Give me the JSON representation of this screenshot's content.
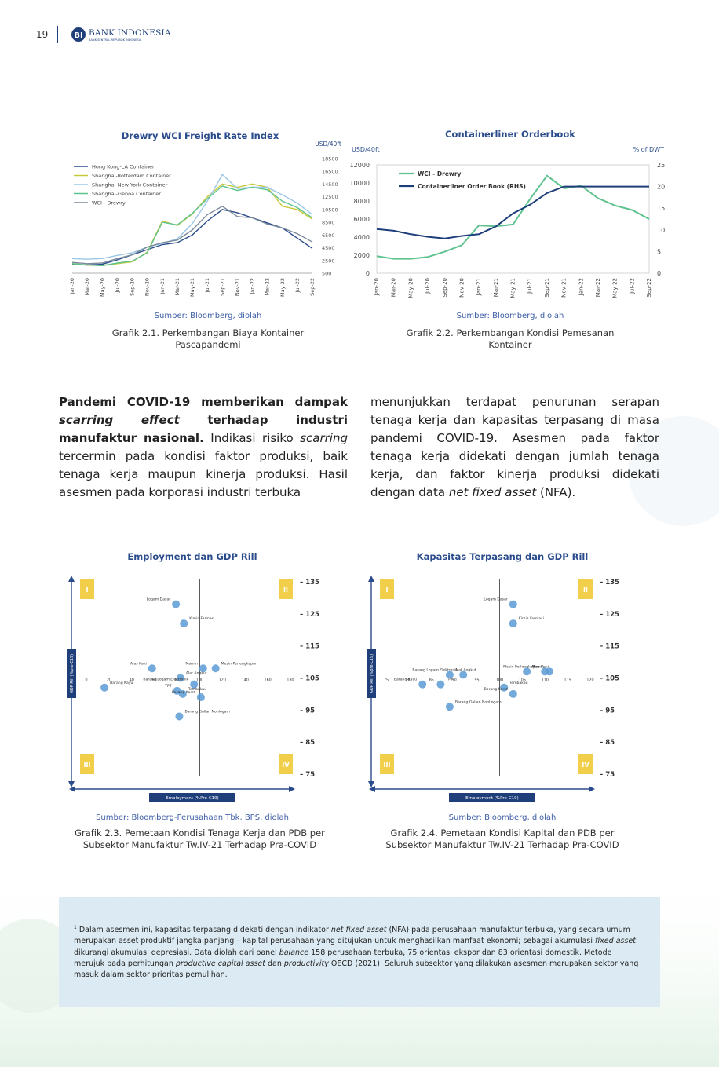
{
  "header": {
    "page_number": "19",
    "logo_text": "BANK INDONESIA",
    "logo_sub": "BANK SENTRAL REPUBLIK INDONESIA",
    "logo_mark": "bank-indonesia-logo-icon"
  },
  "chart1": {
    "title": "Drewry WCI Freight Rate Index",
    "unit": "USD/40ft",
    "source": "Sumber: Bloomberg, diolah",
    "caption": "Grafik 2.1. Perkembangan Biaya Kontainer Pascapandemi"
  },
  "chart2": {
    "title": "Containerliner Orderbook",
    "unit_left": "USD/40ft",
    "unit_right": "% of DWT",
    "source": "Sumber: Bloomberg, diolah",
    "caption": "Grafik 2.2. Perkembangan Kondisi Pemesanan Kontainer"
  },
  "chart3": {
    "title": "Employment dan GDP Rill",
    "xaxis": "Employment (%Pre-C19)",
    "yaxis": "GDP Rill (%pre-C19)",
    "source": "Sumber: Bloomberg-Perusahaan Tbk, BPS, diolah",
    "caption": "Grafik 2.3. Pemetaan Kondisi Tenaga Kerja dan PDB per Subsektor Manufaktur Tw.IV-21 Terhadap Pra-COVID"
  },
  "chart4": {
    "title": "Kapasitas Terpasang dan GDP Rill",
    "xaxis": "Employment (%Pre-C19)",
    "yaxis": "GDP Rill (%pre-C19)",
    "source": "Sumber: Bloomberg, diolah",
    "caption": "Grafik 2.4. Pemetaan Kondisi Kapital dan PDB per Subsektor Manufaktur Tw.IV-21 Terhadap Pra-COVID"
  },
  "quadrants": [
    "I",
    "II",
    "III",
    "IV"
  ],
  "body": {
    "left_bold": "Pandemi COVID-19 memberikan dampak ",
    "left_bold_italic": "scarring effect",
    "left_bold2": " terhadap industri manufaktur nasional.",
    "left_plain1": " Indikasi risiko ",
    "left_italic": "scarring",
    "left_plain2": " tercermin pada kondisi faktor produksi, baik tenaga kerja maupun kinerja produksi. Hasil asesmen pada korporasi industri terbuka",
    "right_plain1": "menunjukkan terdapat penurunan serapan tenaga kerja dan kapasitas terpasang di masa pandemi COVID-19. Asesmen pada faktor tenaga kerja didekati dengan jumlah tenaga kerja, dan faktor kinerja produksi didekati dengan data ",
    "right_italic": "net fixed asset",
    "right_plain2": " (NFA)."
  },
  "footnote": {
    "marker": "1",
    "p1": " Dalam asesmen ini, kapasitas terpasang didekati dengan indikator ",
    "i1": "net fixed asset",
    "p2": " (NFA) pada perusahaan manufaktur terbuka, yang secara umum merupakan asset produktif jangka panjang – kapital perusahaan yang ditujukan untuk menghasilkan manfaat ekonomi; sebagai akumulasi ",
    "i2": "fixed asset",
    "p3": " dikurangi akumulasi depresiasi. Data diolah dari panel ",
    "i3": "balance",
    "p4": " 158 perusahaan terbuka, 75 orientasi ekspor dan 83 orientasi domestik. Metode merujuk pada perhitungan ",
    "i4": "productive capital asset",
    "p5": " dan ",
    "i5": "productivity",
    "p6": " OECD (2021). Seluruh subsektor yang dilakukan asesmen merupakan sektor yang masuk dalam sektor prioritas pemulihan."
  },
  "colors": {
    "navy": "#1f3f7a",
    "title": "#2b4c8c",
    "green": "#5ec38f",
    "yellow": "#c7c93a",
    "lightblue": "#9bc7e8",
    "gray": "#7a8a9a",
    "blue2": "#4a76b8",
    "point": "#5b9bd5",
    "quad": "#f2cf4a",
    "footnote_bg": "#dcebf3"
  },
  "chart_data": [
    {
      "type": "line",
      "title": "Drewry WCI Freight Rate Index",
      "ylabel": "USD/40ft",
      "ylim": [
        500,
        18500
      ],
      "yticks": [
        500,
        2500,
        4500,
        6500,
        8500,
        10500,
        12500,
        14500,
        16500,
        18500
      ],
      "xticks": [
        "Jan-20",
        "Mar-20",
        "May-20",
        "Jul-20",
        "Sep-20",
        "Nov-20",
        "Jan-21",
        "Mar-21",
        "May-21",
        "Jul-21",
        "Sep-21",
        "Nov-21",
        "Jan-22",
        "Mar-22",
        "May-22",
        "Jul-22",
        "Sep-22"
      ],
      "legend": "top-left",
      "series": [
        {
          "name": "Hong Kong-LA Container",
          "color": "#2b4c8c",
          "values": [
            1900,
            1800,
            1900,
            2600,
            3400,
            4200,
            5000,
            5300,
            6500,
            8700,
            10500,
            10000,
            9200,
            8400,
            7600,
            6000,
            4400
          ]
        },
        {
          "name": "Shanghai-Rotterdam Container",
          "color": "#c7c93a",
          "values": [
            2000,
            1800,
            1700,
            2000,
            2300,
            3800,
            8700,
            8000,
            9800,
            12500,
            14500,
            14000,
            14500,
            14000,
            11000,
            10500,
            9000
          ]
        },
        {
          "name": "Shanghai-New York Container",
          "color": "#9bc7e8",
          "values": [
            2800,
            2700,
            2800,
            3300,
            3700,
            4600,
            5200,
            5900,
            8300,
            11800,
            16000,
            13800,
            14000,
            14000,
            12800,
            11500,
            9700
          ]
        },
        {
          "name": "Shanghai-Genoa Container",
          "color": "#5ec38f",
          "values": [
            2000,
            1800,
            1700,
            2100,
            2400,
            3700,
            8500,
            8100,
            9900,
            12200,
            14200,
            13500,
            14000,
            13600,
            11800,
            10800,
            9200
          ]
        },
        {
          "name": "WCI - Drewry",
          "color": "#7a8a9a",
          "values": [
            2200,
            2000,
            2100,
            2800,
            3400,
            4600,
            5300,
            5700,
            7300,
            9700,
            11000,
            9400,
            9200,
            8200,
            7600,
            6700,
            5400
          ]
        }
      ]
    },
    {
      "type": "line",
      "title": "Containerliner Orderbook",
      "ylabel": "USD/40ft",
      "ylim": [
        0,
        12000
      ],
      "yticks": [
        0,
        2000,
        4000,
        6000,
        8000,
        10000,
        12000
      ],
      "y2label": "% of DWT",
      "y2lim": [
        0,
        25
      ],
      "y2ticks": [
        0,
        5,
        10,
        15,
        20,
        25
      ],
      "xticks": [
        "Jan-20",
        "Mar-20",
        "May-20",
        "Jul-20",
        "Sep-20",
        "Nov-20",
        "Jan-21",
        "Mar-21",
        "May-21",
        "Jul-21",
        "Sep-21",
        "Nov-21",
        "Jan-22",
        "Mar-22",
        "May-22",
        "Jul-22",
        "Sep-22"
      ],
      "legend": "top-left",
      "series": [
        {
          "name": "WCI - Drewry",
          "axis": "left",
          "color": "#5ec38f",
          "values": [
            1900,
            1600,
            1600,
            1800,
            2400,
            3100,
            5300,
            5200,
            5400,
            8200,
            10800,
            9400,
            9700,
            8300,
            7500,
            7000,
            6000
          ]
        },
        {
          "name": "Containerliner Order Book (RHS)",
          "axis": "right",
          "color": "#1f3f7a",
          "values": [
            10.2,
            9.8,
            9.0,
            8.4,
            8.0,
            8.6,
            9.0,
            10.8,
            13.8,
            15.8,
            18.5,
            20,
            20,
            20,
            20,
            20,
            20
          ]
        }
      ]
    },
    {
      "type": "scatter",
      "title": "Employment dan GDP Rill",
      "xlabel": "Employment (%Pre-C19)",
      "ylabel": "GDP Rill (%pre-C19)",
      "xlim": [
        0,
        180
      ],
      "xticks": [
        0,
        20,
        40,
        60,
        80,
        100,
        120,
        140,
        160,
        180
      ],
      "ylim": [
        75,
        135
      ],
      "yticks": [
        75,
        85,
        95,
        105,
        115,
        125,
        135
      ],
      "points": [
        {
          "label": "Logam Dasar",
          "x": 79,
          "y": 128
        },
        {
          "label": "Kimia Farmasi",
          "x": 86,
          "y": 122
        },
        {
          "label": "Alas Kaki",
          "x": 58,
          "y": 108
        },
        {
          "label": "Alat Angkut",
          "x": 83,
          "y": 105
        },
        {
          "label": "Mamin",
          "x": 103,
          "y": 108
        },
        {
          "label": "Mesin Perlengkapan",
          "x": 114,
          "y": 108
        },
        {
          "label": "Barang Logam Elektronik",
          "x": 95,
          "y": 103
        },
        {
          "label": "Barang Kayu",
          "x": 16,
          "y": 102
        },
        {
          "label": "TPT",
          "x": 80,
          "y": 101
        },
        {
          "label": "Tembakau",
          "x": 85,
          "y": 100
        },
        {
          "label": "Barang Karet",
          "x": 101,
          "y": 99
        },
        {
          "label": "Barang Galian Nonlogam",
          "x": 82,
          "y": 93
        }
      ]
    },
    {
      "type": "scatter",
      "title": "Kapasitas Terpasang dan GDP Rill",
      "xlabel": "Employment (%Pre-C19)",
      "ylabel": "GDP Rill (%pre-C19)",
      "xlim": [
        75,
        120
      ],
      "xticks": [
        75,
        80,
        85,
        90,
        95,
        100,
        105,
        110,
        115,
        120
      ],
      "ylim": [
        75,
        135
      ],
      "yticks": [
        75,
        85,
        95,
        105,
        115,
        125,
        135
      ],
      "points": [
        {
          "label": "Logam Dasar",
          "x": 103,
          "y": 128
        },
        {
          "label": "Kimia Farmasi",
          "x": 103,
          "y": 122
        },
        {
          "label": "Barang Logam Elektronik",
          "x": 92,
          "y": 106
        },
        {
          "label": "Alat Angkut",
          "x": 89,
          "y": 106
        },
        {
          "label": "Mesin Perlengkapan",
          "x": 110,
          "y": 107
        },
        {
          "label": "Alas Kaki",
          "x": 106,
          "y": 107
        },
        {
          "label": "Mamin",
          "x": 111,
          "y": 107
        },
        {
          "label": "TPT",
          "x": 87,
          "y": 103
        },
        {
          "label": "Barang Kayu",
          "x": 83,
          "y": 103
        },
        {
          "label": "Tembakau",
          "x": 101,
          "y": 102
        },
        {
          "label": "Barang Karet",
          "x": 103,
          "y": 100
        },
        {
          "label": "Barang Galian NonLogam",
          "x": 89,
          "y": 96
        }
      ]
    }
  ]
}
